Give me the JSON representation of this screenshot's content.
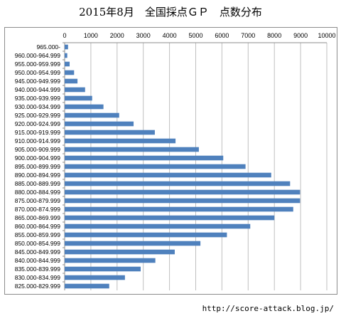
{
  "title": "2015年8月　全国採点ＧＰ　点数分布",
  "footer_url": "http://score-attack.blog.jp/",
  "colors": {
    "bar": "#4f81bd",
    "grid": "#bfbfbf",
    "axis": "#8c8c8c"
  },
  "chart_data": {
    "type": "bar",
    "orientation": "horizontal",
    "title": "2015年8月　全国採点ＧＰ　点数分布",
    "xlabel": "",
    "ylabel": "",
    "xlim": [
      0,
      10000
    ],
    "x_ticks": [
      0,
      1000,
      2000,
      3000,
      4000,
      5000,
      6000,
      7000,
      8000,
      9000,
      10000
    ],
    "grid": true,
    "categories": [
      "965.000-",
      "960.000-964.999",
      "955.000-959.999",
      "950.000-954.999",
      "945.000-949.999",
      "940.000-944.999",
      "935.000-939.999",
      "930.000-934.999",
      "925.000-929.999",
      "920.000-924.999",
      "915.000-919.999",
      "910.000-914.999",
      "905.000-909.999",
      "900.000-904.999",
      "895.000-899.999",
      "890.000-894.999",
      "885.000-889.999",
      "880.000-884.999",
      "875.000-879.999",
      "870.000-874.999",
      "865.000-869.999",
      "860.000-864.999",
      "855.000-859.999",
      "850.000-854.999",
      "845.000-849.999",
      "840.000-844.999",
      "835.000-839.999",
      "830.000-834.999",
      "825.000-829.999"
    ],
    "values": [
      130,
      100,
      190,
      360,
      490,
      780,
      1050,
      1480,
      2080,
      2630,
      3440,
      4230,
      5120,
      6050,
      6900,
      7880,
      8600,
      8980,
      8980,
      8720,
      8000,
      7080,
      6190,
      5180,
      4200,
      3460,
      2900,
      2300,
      1700
    ]
  }
}
